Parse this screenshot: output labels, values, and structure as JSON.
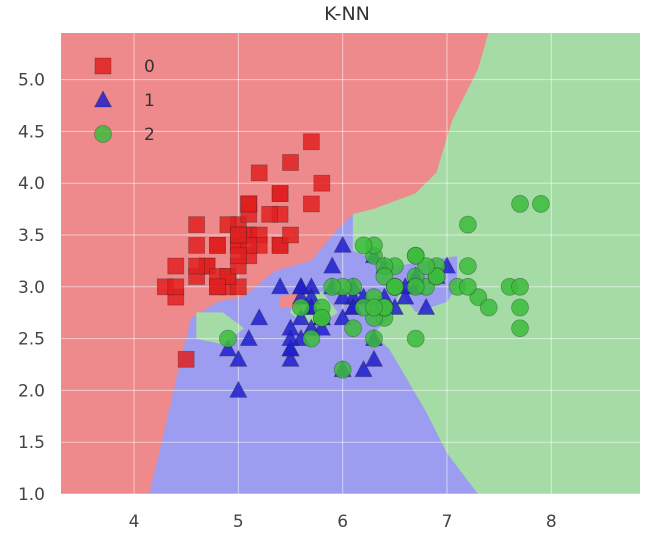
{
  "chart_data": {
    "type": "scatter",
    "title": "K-NN",
    "xlabel": "",
    "ylabel": "",
    "xlim": [
      3.3,
      8.85
    ],
    "ylim": [
      1.0,
      5.45
    ],
    "xticks": [
      4,
      5,
      6,
      7,
      8
    ],
    "xtick_labels": [
      "4",
      "5",
      "6",
      "7",
      "8"
    ],
    "yticks": [
      1.0,
      1.5,
      2.0,
      2.5,
      3.0,
      3.5,
      4.0,
      4.5,
      5.0
    ],
    "ytick_labels": [
      "1.0",
      "1.5",
      "2.0",
      "2.5",
      "3.0",
      "3.5",
      "4.0",
      "4.5",
      "5.0"
    ],
    "grid": true,
    "legend_position": "top-left",
    "background": "decision regions of a k-nearest-neighbours classifier",
    "regions": [
      {
        "class": "0",
        "color": "#ee8a8c",
        "polygon": [
          [
            3.3,
            5.45
          ],
          [
            7.4,
            5.45
          ],
          [
            7.3,
            5.1
          ],
          [
            7.05,
            4.6
          ],
          [
            6.9,
            4.1
          ],
          [
            6.7,
            3.9
          ],
          [
            6.3,
            3.75
          ],
          [
            5.95,
            3.55
          ],
          [
            5.7,
            3.25
          ],
          [
            5.35,
            3.15
          ],
          [
            5.05,
            2.9
          ],
          [
            4.8,
            2.85
          ],
          [
            4.55,
            2.7
          ],
          [
            4.5,
            2.5
          ],
          [
            4.15,
            1.0
          ],
          [
            3.3,
            1.0
          ]
        ]
      },
      {
        "class": "1",
        "color": "#9c9cf0",
        "polygon": [
          [
            4.15,
            1.0
          ],
          [
            4.5,
            2.5
          ],
          [
            4.55,
            2.7
          ],
          [
            4.8,
            2.85
          ],
          [
            5.05,
            2.9
          ],
          [
            5.35,
            3.15
          ],
          [
            5.7,
            3.25
          ],
          [
            5.95,
            3.55
          ],
          [
            6.1,
            3.7
          ],
          [
            6.1,
            3.35
          ],
          [
            6.5,
            3.2
          ],
          [
            7.1,
            3.3
          ],
          [
            7.1,
            3.0
          ],
          [
            7.0,
            2.85
          ],
          [
            6.7,
            2.75
          ],
          [
            6.55,
            2.95
          ],
          [
            6.45,
            2.7
          ],
          [
            6.3,
            2.55
          ],
          [
            6.45,
            2.4
          ],
          [
            6.8,
            1.8
          ],
          [
            7.0,
            1.4
          ],
          [
            7.3,
            1.0
          ]
        ]
      },
      {
        "class": "2",
        "color": "#a5dca5",
        "polygon": [
          [
            7.4,
            5.45
          ],
          [
            8.85,
            5.45
          ],
          [
            8.85,
            1.0
          ],
          [
            7.3,
            1.0
          ],
          [
            7.0,
            1.4
          ],
          [
            6.8,
            1.8
          ],
          [
            6.45,
            2.4
          ],
          [
            6.3,
            2.55
          ],
          [
            6.45,
            2.7
          ],
          [
            6.55,
            2.95
          ],
          [
            6.7,
            2.75
          ],
          [
            7.0,
            2.85
          ],
          [
            7.1,
            3.0
          ],
          [
            7.1,
            3.3
          ],
          [
            6.5,
            3.2
          ],
          [
            6.1,
            3.35
          ],
          [
            6.1,
            3.7
          ],
          [
            6.3,
            3.75
          ],
          [
            6.7,
            3.9
          ],
          [
            6.9,
            4.1
          ],
          [
            7.05,
            4.6
          ],
          [
            7.3,
            5.1
          ]
        ]
      },
      {
        "class": "2",
        "color": "#a5dca5",
        "polygon": [
          [
            4.6,
            2.75
          ],
          [
            4.85,
            2.75
          ],
          [
            5.05,
            2.6
          ],
          [
            4.85,
            2.45
          ],
          [
            4.6,
            2.5
          ]
        ]
      },
      {
        "class": "2",
        "color": "#a5dca5",
        "polygon": [
          [
            5.55,
            2.9
          ],
          [
            5.8,
            2.95
          ],
          [
            5.95,
            2.75
          ],
          [
            5.7,
            2.6
          ],
          [
            5.5,
            2.75
          ]
        ]
      },
      {
        "class": "0",
        "color": "#ee8a8c",
        "polygon": [
          [
            5.4,
            2.9
          ],
          [
            5.6,
            2.95
          ],
          [
            5.6,
            2.8
          ],
          [
            5.4,
            2.8
          ]
        ]
      }
    ],
    "series": [
      {
        "name": "0",
        "marker": "square",
        "color": "#e02020",
        "points": [
          [
            5.1,
            3.5
          ],
          [
            4.9,
            3.0
          ],
          [
            4.7,
            3.2
          ],
          [
            4.6,
            3.1
          ],
          [
            5.0,
            3.6
          ],
          [
            5.4,
            3.9
          ],
          [
            4.6,
            3.4
          ],
          [
            5.0,
            3.4
          ],
          [
            4.4,
            2.9
          ],
          [
            4.9,
            3.1
          ],
          [
            5.4,
            3.7
          ],
          [
            4.8,
            3.4
          ],
          [
            4.8,
            3.0
          ],
          [
            4.3,
            3.0
          ],
          [
            5.8,
            4.0
          ],
          [
            5.7,
            4.4
          ],
          [
            5.4,
            3.9
          ],
          [
            5.1,
            3.5
          ],
          [
            5.7,
            3.8
          ],
          [
            5.1,
            3.8
          ],
          [
            5.4,
            3.4
          ],
          [
            5.1,
            3.7
          ],
          [
            4.6,
            3.6
          ],
          [
            5.1,
            3.3
          ],
          [
            4.8,
            3.4
          ],
          [
            5.0,
            3.0
          ],
          [
            5.0,
            3.4
          ],
          [
            5.2,
            3.5
          ],
          [
            5.2,
            3.4
          ],
          [
            4.7,
            3.2
          ],
          [
            4.8,
            3.1
          ],
          [
            5.4,
            3.4
          ],
          [
            5.2,
            4.1
          ],
          [
            5.5,
            4.2
          ],
          [
            4.9,
            3.1
          ],
          [
            5.0,
            3.2
          ],
          [
            5.5,
            3.5
          ],
          [
            4.9,
            3.6
          ],
          [
            4.4,
            3.0
          ],
          [
            5.1,
            3.4
          ],
          [
            5.0,
            3.5
          ],
          [
            4.5,
            2.3
          ],
          [
            4.4,
            3.2
          ],
          [
            5.0,
            3.5
          ],
          [
            5.1,
            3.8
          ],
          [
            4.8,
            3.0
          ],
          [
            5.1,
            3.8
          ],
          [
            4.6,
            3.2
          ],
          [
            5.3,
            3.7
          ],
          [
            5.0,
            3.3
          ]
        ]
      },
      {
        "name": "1",
        "marker": "triangle",
        "color": "#2020cc",
        "points": [
          [
            7.0,
            3.2
          ],
          [
            6.4,
            3.2
          ],
          [
            6.9,
            3.1
          ],
          [
            5.5,
            2.3
          ],
          [
            6.5,
            2.8
          ],
          [
            5.7,
            2.8
          ],
          [
            6.3,
            3.3
          ],
          [
            4.9,
            2.4
          ],
          [
            6.6,
            2.9
          ],
          [
            5.2,
            2.7
          ],
          [
            5.0,
            2.0
          ],
          [
            5.9,
            3.0
          ],
          [
            6.0,
            2.2
          ],
          [
            6.1,
            2.9
          ],
          [
            5.6,
            2.9
          ],
          [
            6.7,
            3.1
          ],
          [
            5.6,
            3.0
          ],
          [
            5.8,
            2.7
          ],
          [
            6.2,
            2.2
          ],
          [
            5.6,
            2.5
          ],
          [
            5.9,
            3.2
          ],
          [
            6.1,
            2.8
          ],
          [
            6.3,
            2.5
          ],
          [
            6.1,
            2.8
          ],
          [
            6.4,
            2.9
          ],
          [
            6.6,
            3.0
          ],
          [
            6.8,
            2.8
          ],
          [
            6.7,
            3.0
          ],
          [
            6.0,
            2.9
          ],
          [
            5.7,
            2.6
          ],
          [
            5.5,
            2.4
          ],
          [
            5.5,
            2.4
          ],
          [
            5.8,
            2.7
          ],
          [
            6.0,
            2.7
          ],
          [
            5.4,
            3.0
          ],
          [
            6.0,
            3.4
          ],
          [
            6.7,
            3.1
          ],
          [
            6.3,
            2.3
          ],
          [
            5.6,
            3.0
          ],
          [
            5.5,
            2.5
          ],
          [
            5.5,
            2.6
          ],
          [
            6.1,
            3.0
          ],
          [
            5.8,
            2.6
          ],
          [
            5.0,
            2.3
          ],
          [
            5.6,
            2.7
          ],
          [
            5.7,
            3.0
          ],
          [
            5.7,
            2.9
          ],
          [
            6.2,
            2.9
          ],
          [
            5.1,
            2.5
          ],
          [
            5.7,
            2.8
          ]
        ]
      },
      {
        "name": "2",
        "marker": "circle",
        "color": "#3cbb3c",
        "points": [
          [
            6.3,
            3.3
          ],
          [
            5.8,
            2.7
          ],
          [
            7.1,
            3.0
          ],
          [
            6.3,
            2.9
          ],
          [
            6.5,
            3.0
          ],
          [
            7.6,
            3.0
          ],
          [
            4.9,
            2.5
          ],
          [
            7.3,
            2.9
          ],
          [
            6.7,
            2.5
          ],
          [
            7.2,
            3.6
          ],
          [
            6.5,
            3.2
          ],
          [
            6.4,
            2.7
          ],
          [
            6.8,
            3.0
          ],
          [
            5.7,
            2.5
          ],
          [
            5.8,
            2.8
          ],
          [
            6.4,
            3.2
          ],
          [
            6.5,
            3.0
          ],
          [
            7.7,
            3.8
          ],
          [
            7.7,
            2.6
          ],
          [
            6.0,
            2.2
          ],
          [
            6.9,
            3.2
          ],
          [
            5.6,
            2.8
          ],
          [
            7.7,
            2.8
          ],
          [
            6.3,
            2.7
          ],
          [
            6.7,
            3.3
          ],
          [
            7.2,
            3.2
          ],
          [
            6.2,
            2.8
          ],
          [
            6.1,
            3.0
          ],
          [
            6.4,
            2.8
          ],
          [
            7.2,
            3.0
          ],
          [
            7.4,
            2.8
          ],
          [
            7.9,
            3.8
          ],
          [
            6.4,
            2.8
          ],
          [
            6.3,
            2.8
          ],
          [
            6.1,
            2.6
          ],
          [
            7.7,
            3.0
          ],
          [
            6.3,
            3.4
          ],
          [
            6.4,
            3.1
          ],
          [
            6.0,
            3.0
          ],
          [
            6.9,
            3.1
          ],
          [
            6.7,
            3.1
          ],
          [
            6.9,
            3.1
          ],
          [
            5.8,
            2.7
          ],
          [
            6.8,
            3.2
          ],
          [
            6.7,
            3.3
          ],
          [
            6.7,
            3.0
          ],
          [
            6.3,
            2.5
          ],
          [
            6.5,
            3.0
          ],
          [
            6.2,
            3.4
          ],
          [
            5.9,
            3.0
          ]
        ]
      }
    ]
  }
}
